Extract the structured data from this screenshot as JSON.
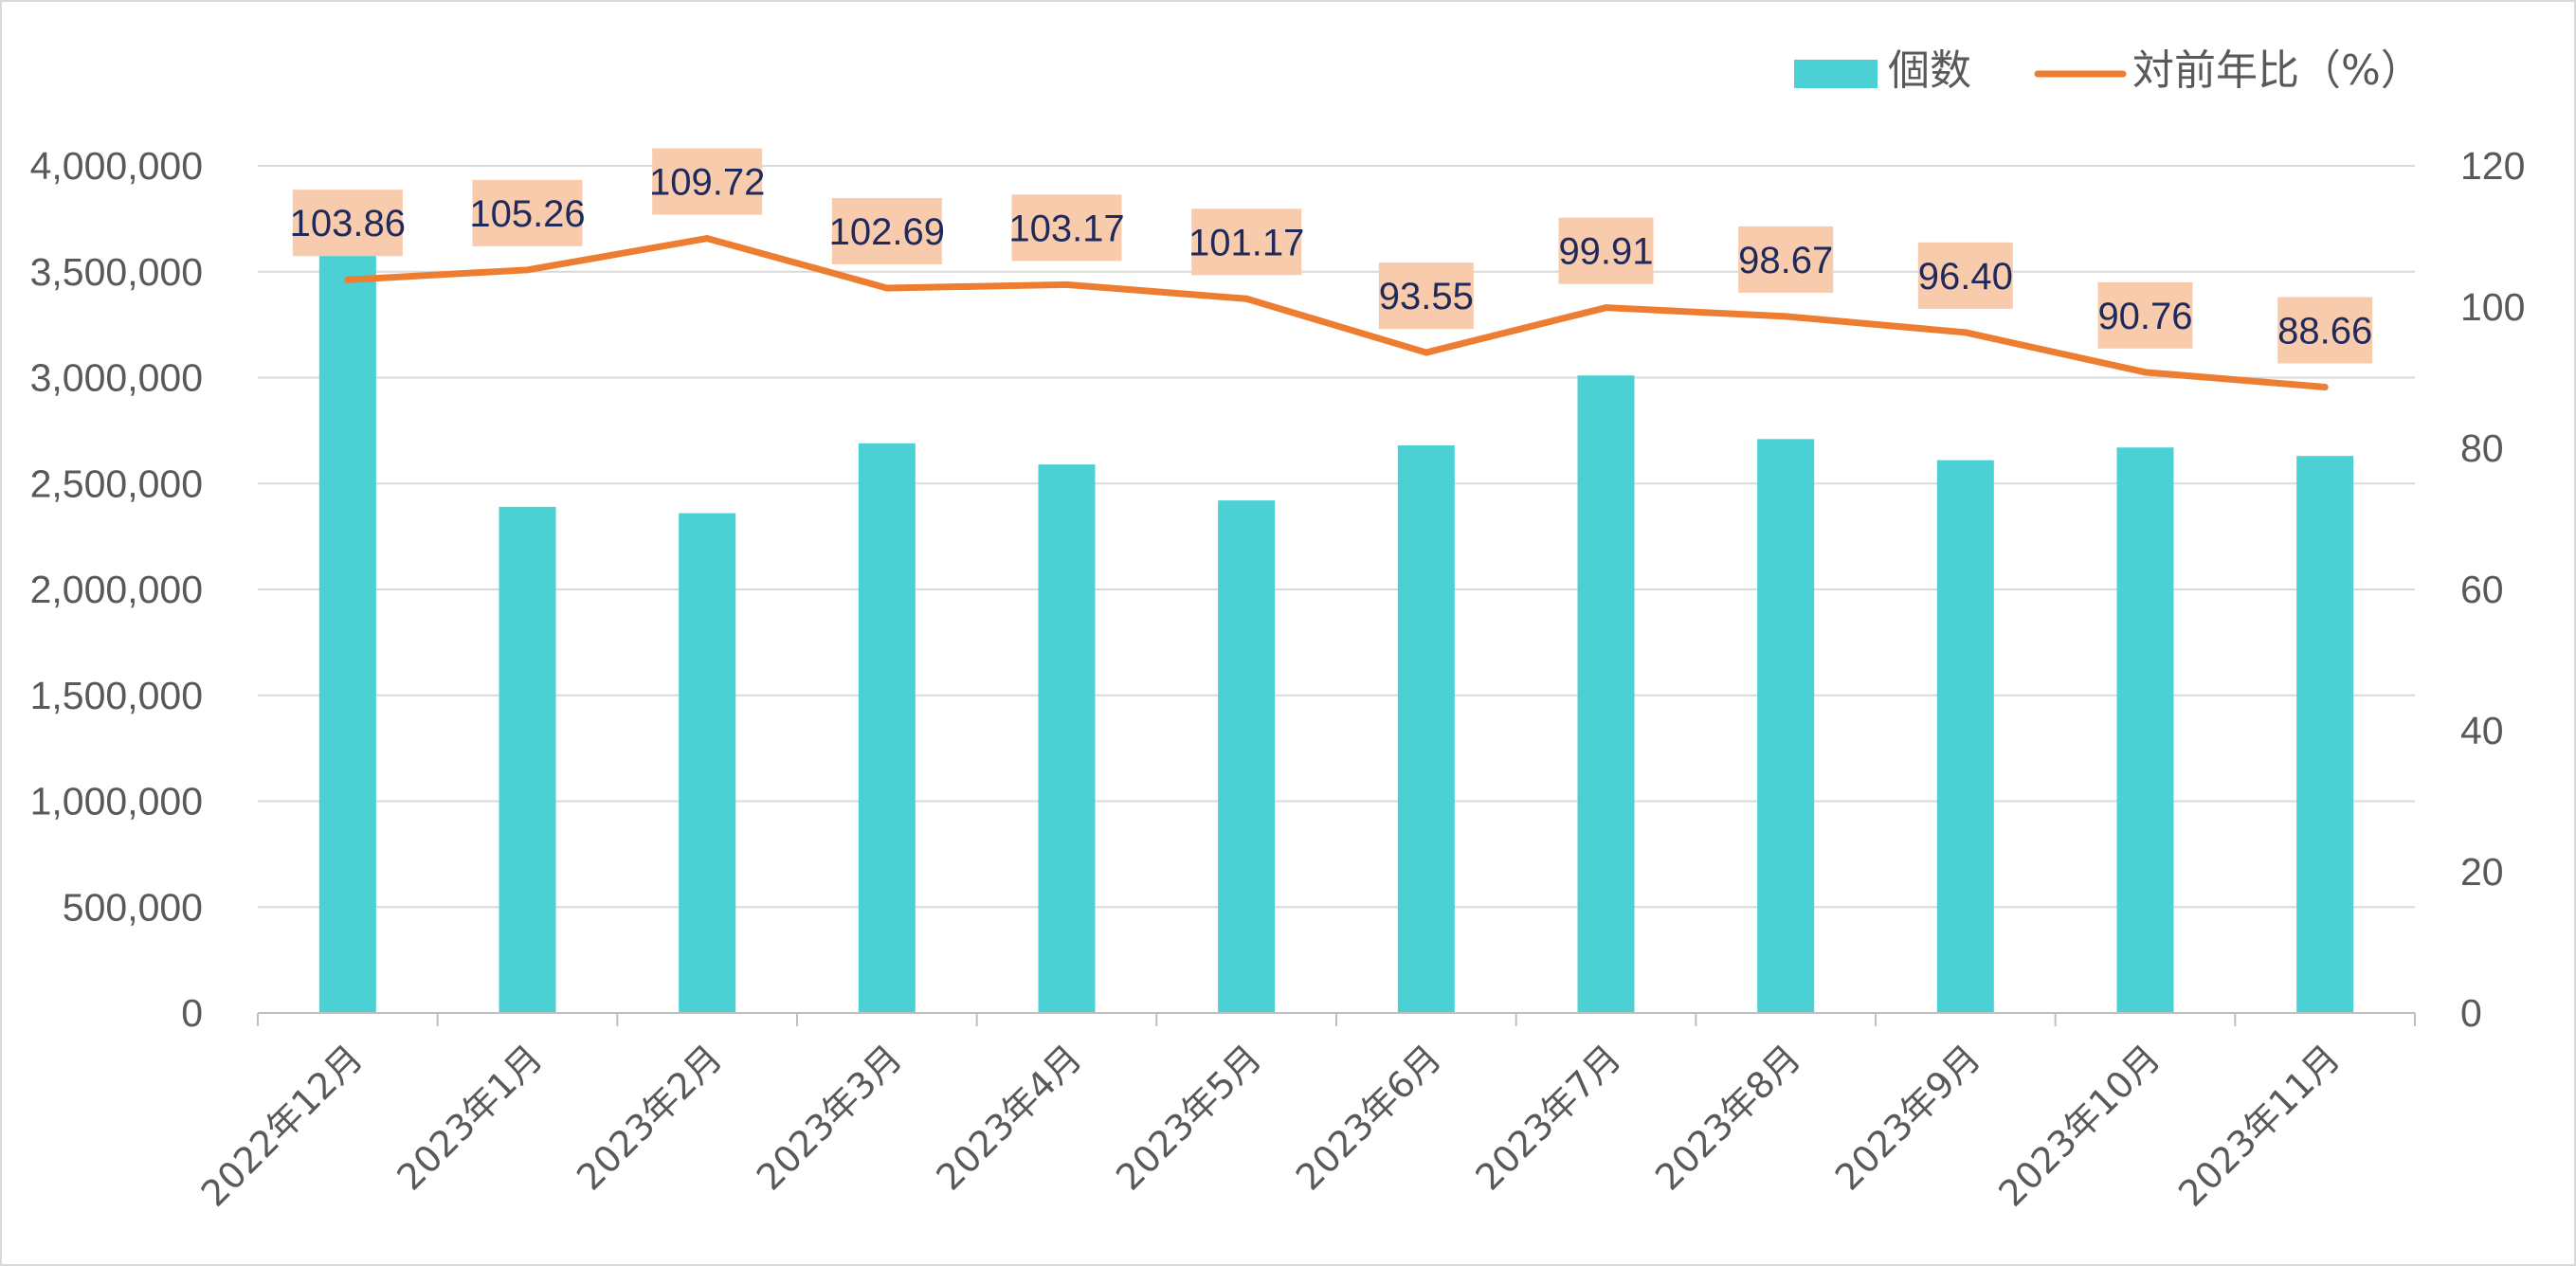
{
  "chart_data": {
    "type": "bar",
    "categories": [
      "2022年12月",
      "2023年1月",
      "2023年2月",
      "2023年3月",
      "2023年4月",
      "2023年5月",
      "2023年6月",
      "2023年7月",
      "2023年8月",
      "2023年9月",
      "2023年10月",
      "2023年11月"
    ],
    "series": [
      {
        "name": "個数",
        "type": "bar",
        "axis": "left",
        "color": "#4bd1d3",
        "values": [
          3680000,
          2390000,
          2360000,
          2690000,
          2590000,
          2420000,
          2680000,
          3010000,
          2710000,
          2610000,
          2670000,
          2630000
        ]
      },
      {
        "name": "対前年比（%）",
        "type": "line",
        "axis": "right",
        "color": "#ed7d31",
        "values": [
          103.86,
          105.26,
          109.72,
          102.69,
          103.17,
          101.17,
          93.55,
          99.91,
          98.67,
          96.4,
          90.76,
          88.66
        ],
        "data_labels": [
          "103.86",
          "105.26",
          "109.72",
          "102.69",
          "103.17",
          "101.17",
          "93.55",
          "99.91",
          "98.67",
          "96.40",
          "90.76",
          "88.66"
        ],
        "label_background": "#f8cbad"
      }
    ],
    "y_left": {
      "ylim": [
        0,
        4000000
      ],
      "ticks": [
        0,
        500000,
        1000000,
        1500000,
        2000000,
        2500000,
        3000000,
        3500000,
        4000000
      ],
      "tick_labels": [
        "0",
        "500,000",
        "1,000,000",
        "1,500,000",
        "2,000,000",
        "2,500,000",
        "3,000,000",
        "3,500,000",
        "4,000,000"
      ]
    },
    "y_right": {
      "ylim": [
        0,
        120
      ],
      "ticks": [
        0,
        20,
        40,
        60,
        80,
        100,
        120
      ],
      "tick_labels": [
        "0",
        "20",
        "40",
        "60",
        "80",
        "100",
        "120"
      ]
    },
    "grid": true,
    "legend": "top-right",
    "title": "",
    "xlabel": "",
    "ylabel": ""
  }
}
